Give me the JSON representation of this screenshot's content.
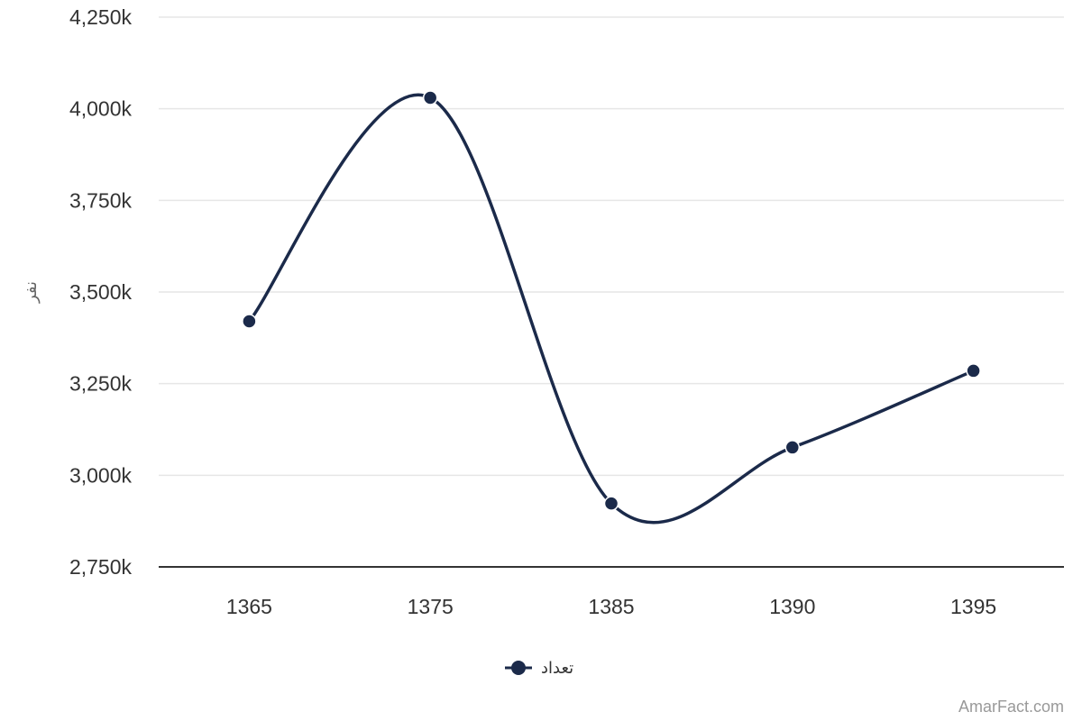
{
  "chart_data": {
    "type": "line",
    "categories": [
      "1365",
      "1375",
      "1385",
      "1390",
      "1395"
    ],
    "series": [
      {
        "name": "تعداد",
        "values": [
          3420000,
          4030000,
          2923000,
          3076000,
          3285000
        ]
      }
    ],
    "ylabel": "نفر",
    "ylim": [
      2750000,
      4250000
    ],
    "yticks": [
      2750000,
      3000000,
      3250000,
      3500000,
      3750000,
      4000000,
      4250000
    ],
    "ytick_labels": [
      "2,750k",
      "3,000k",
      "3,250k",
      "3,500k",
      "3,750k",
      "4,000k",
      "4,250k"
    ],
    "grid": true,
    "legend_position": "bottom-center",
    "smooth": true,
    "line_color": "#1b2a4a"
  },
  "credit": "AmarFact.com"
}
